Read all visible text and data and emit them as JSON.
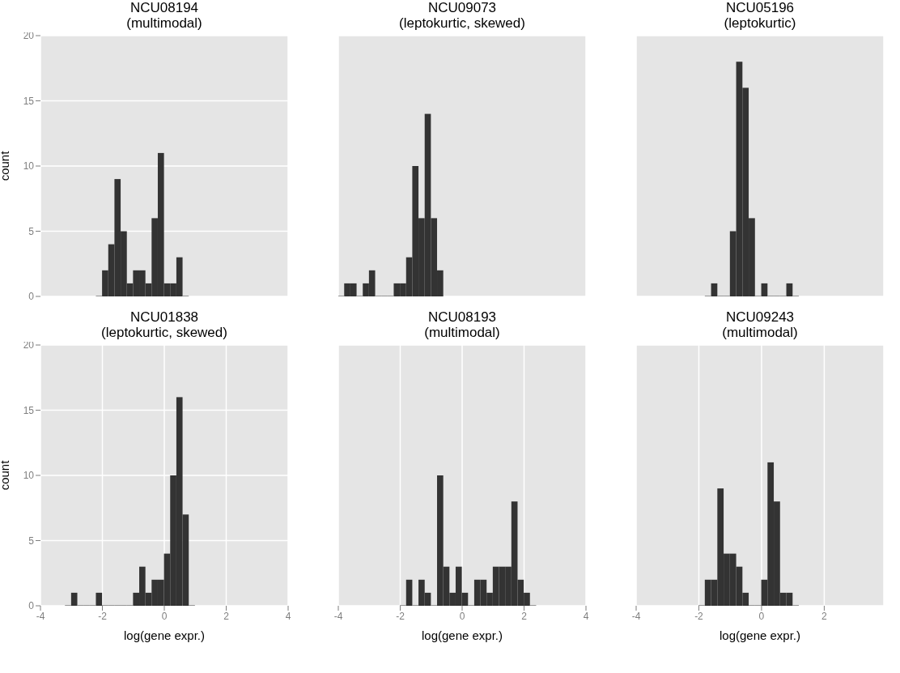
{
  "chart_data": [
    {
      "type": "histogram",
      "title": "NCU08194\n(multimodal)",
      "ylabel": "count",
      "bins": [
        -2.2,
        -2.0,
        -1.8,
        -1.6,
        -1.4,
        -1.2,
        -1.0,
        -0.8,
        -0.6,
        -0.4,
        -0.2,
        0,
        0.2,
        0.4,
        0.6,
        0.8
      ],
      "values": [
        0,
        2,
        4,
        9,
        5,
        1,
        2,
        2,
        1,
        6,
        11,
        1,
        1,
        3,
        0
      ],
      "color": "#333333",
      "xlim": [
        -4,
        4
      ],
      "xticks": [
        -4,
        -2,
        0,
        2,
        4
      ],
      "ylim": [
        0,
        20
      ],
      "yticks": [
        0,
        5,
        10,
        15,
        20
      ],
      "grid": true,
      "tick_labels": "y"
    },
    {
      "type": "histogram",
      "title": "NCU09073\n(leptokurtic, skewed)",
      "bins": [
        -4.0,
        -3.8,
        -3.6,
        -3.4,
        -3.2,
        -3.0,
        -2.8,
        -2.6,
        -2.4,
        -2.2,
        -2.0,
        -1.8,
        -1.6,
        -1.4,
        -1.2,
        -1.0,
        -0.8,
        -0.6
      ],
      "values": [
        0,
        1,
        1,
        0,
        1,
        2,
        0,
        0,
        0,
        1,
        1,
        3,
        10,
        6,
        14,
        6,
        2
      ],
      "color": "#333333",
      "xlim": [
        -4,
        4
      ],
      "xticks": [
        -4,
        -2,
        0,
        2,
        4
      ],
      "ylim": [
        0,
        20
      ],
      "yticks": [
        0,
        5,
        10,
        15,
        20
      ],
      "grid": true,
      "tick_labels": false
    },
    {
      "type": "histogram",
      "title": "NCU05196\n(leptokurtic)",
      "bins": [
        -1.8,
        -1.6,
        -1.4,
        -1.2,
        -1.0,
        -0.8,
        -0.6,
        -0.4,
        -0.2,
        0,
        0.2,
        0.4,
        0.6,
        0.8,
        1.0,
        1.2
      ],
      "values": [
        0,
        1,
        0,
        0,
        5,
        18,
        16,
        6,
        0,
        1,
        0,
        0,
        0,
        1,
        0
      ],
      "color": "#333333",
      "xlim": [
        -4,
        3.9
      ],
      "xticks": [
        -4,
        -2,
        0,
        2
      ],
      "ylim": [
        0,
        20
      ],
      "yticks": [
        0,
        5,
        10,
        15,
        20
      ],
      "grid": true,
      "tick_labels": false
    },
    {
      "type": "histogram",
      "title": "NCU01838\n(leptokurtic, skewed)",
      "xlabel": "log(gene expr.)",
      "ylabel": "count",
      "bins": [
        -3.2,
        -3.0,
        -2.8,
        -2.6,
        -2.4,
        -2.2,
        -2.0,
        -1.8,
        -1.6,
        -1.4,
        -1.2,
        -1.0,
        -0.8,
        -0.6,
        -0.4,
        -0.2,
        0,
        0.2,
        0.4,
        0.6,
        0.8,
        1.0
      ],
      "values": [
        0,
        1,
        0,
        0,
        0,
        1,
        0,
        0,
        0,
        0,
        0,
        1,
        3,
        1,
        2,
        2,
        4,
        10,
        16,
        7,
        0
      ],
      "color": "#333333",
      "xlim": [
        -4,
        4
      ],
      "xticks": [
        -4,
        -2,
        0,
        2,
        4
      ],
      "ylim": [
        0,
        20
      ],
      "yticks": [
        0,
        5,
        10,
        15,
        20
      ],
      "grid": true
    },
    {
      "type": "histogram",
      "title": "NCU08193\n(multimodal)",
      "xlabel": "log(gene expr.)",
      "bins": [
        -2.0,
        -1.8,
        -1.6,
        -1.4,
        -1.2,
        -1.0,
        -0.8,
        -0.6,
        -0.4,
        -0.2,
        0,
        0.2,
        0.4,
        0.6,
        0.8,
        1.0,
        1.2,
        1.4,
        1.6,
        1.8,
        2.0,
        2.2,
        2.4
      ],
      "values": [
        0,
        2,
        0,
        2,
        1,
        0,
        10,
        3,
        1,
        3,
        1,
        0,
        2,
        2,
        1,
        3,
        3,
        3,
        8,
        2,
        1,
        0
      ],
      "color": "#333333",
      "xlim": [
        -4,
        4
      ],
      "xticks": [
        -4,
        -2,
        0,
        2,
        4
      ],
      "ylim": [
        0,
        20
      ],
      "yticks": [
        0,
        5,
        10,
        15,
        20
      ],
      "grid": true,
      "tick_labels": "x"
    },
    {
      "type": "histogram",
      "title": "NCU09243\n(multimodal)",
      "xlabel": "log(gene expr.)",
      "bins": [
        -2.0,
        -1.8,
        -1.6,
        -1.4,
        -1.2,
        -1.0,
        -0.8,
        -0.6,
        -0.4,
        -0.2,
        0,
        0.2,
        0.4,
        0.6,
        0.8,
        1.0,
        1.2
      ],
      "values": [
        0,
        2,
        2,
        9,
        4,
        4,
        3,
        1,
        0,
        0,
        2,
        11,
        8,
        1,
        1,
        0
      ],
      "color": "#333333",
      "xlim": [
        -4,
        3.9
      ],
      "xticks": [
        -4,
        -2,
        0,
        2
      ],
      "ylim": [
        0,
        20
      ],
      "yticks": [
        0,
        5,
        10,
        15,
        20
      ],
      "grid": true,
      "tick_labels": "x"
    }
  ]
}
